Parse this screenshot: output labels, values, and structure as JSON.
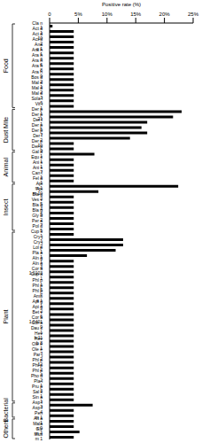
{
  "chart_data": {
    "type": "bar",
    "orientation": "horizontal",
    "xlabel": "Positive rate (%)",
    "color": "#000000",
    "xlim": [
      0,
      25
    ],
    "xticks": [
      0,
      {
        "value": 5,
        "label": "5%"
      },
      {
        "value": 10,
        "label": "10%"
      },
      {
        "value": 15,
        "label": "15%"
      },
      {
        "value": 20,
        "label": "20%"
      },
      {
        "value": 25,
        "label": "25%"
      }
    ],
    "grid": false,
    "categories": [
      "Cla n 1",
      "Act d 1",
      "Act d 10",
      "Act d 2",
      "Ana o 1",
      "Ara h 1",
      "Ara h 3",
      "Ara h 6",
      "Ara h 8",
      "Ara h 9",
      "Bos d 2",
      "Mal d 1",
      "Mal d 2",
      "Mal d 3",
      "Sola l 6",
      "Vit i 1",
      "Der p 1",
      "Der p 21",
      "Der f 1",
      "Der p 5",
      "Der p 7",
      "Der f 2",
      "Der p 10",
      "Der p 9",
      "Gal d 1",
      "Equ c 1",
      "Ani s 1",
      "Ani s 7",
      "Can f 1",
      "Fel d 1",
      "Api m 1",
      "Api m 10",
      "Bla g 2",
      "Ves v 5",
      "Bla g 4",
      "Bla g 5",
      "Gly d 2",
      "Per a 7",
      "Pol d 5",
      "Cup s 1",
      "Cry j 1",
      "Cry j 2",
      "Lol p 1",
      "Pla a 1",
      "Aln g 1",
      "Aln g 4",
      "Cor a 1.0103",
      "Cup a 1",
      "Phl p 1",
      "Phl p 5",
      "Phl p 7",
      "Amb a 1",
      "Api g 1",
      "Api g 2",
      "Bet v 6",
      "Cor a 1.0401",
      "Cor a 9",
      "Dau c 1",
      "Hev b 11",
      "Hev b 8",
      "Ole e 1",
      "Ole e 7",
      "Par j 2",
      "Phl p 12",
      "Phl p 2",
      "Phl p 4",
      "Pho d 2",
      "Pla l 1",
      "Pru p 3",
      "Sal k 1",
      "Sin a 1",
      "Asp f 3",
      "Asp f 4",
      "Pen m 1",
      "Alt a 1",
      "Mala s 9",
      "Gly m 4",
      "Mus m 1"
    ],
    "values": [
      0.5,
      4.2,
      4.2,
      4.2,
      4.2,
      4.2,
      4.2,
      4.2,
      4.2,
      4.2,
      4.2,
      4.2,
      4.2,
      4.2,
      4.2,
      4.2,
      23,
      21.5,
      17,
      16,
      17,
      14,
      4.2,
      4.2,
      7.8,
      4.2,
      4.2,
      4.2,
      4.2,
      4.2,
      22.4,
      8.5,
      4.2,
      4.2,
      4.2,
      4.2,
      4.2,
      4.2,
      4.2,
      4.2,
      12.8,
      12.8,
      11.5,
      6.5,
      4.2,
      4.2,
      4.2,
      4.2,
      4.2,
      4.2,
      4.2,
      4.2,
      4.2,
      4.2,
      4.2,
      4.2,
      4.2,
      4.2,
      4.2,
      4.2,
      4.2,
      4.2,
      4.2,
      4.2,
      4.2,
      4.2,
      4.2,
      4.2,
      4.2,
      4.2,
      4.2,
      7.5,
      4.2,
      4.2,
      4.2,
      4.2,
      5.2,
      4.2
    ],
    "groups": [
      "Food",
      "Food",
      "Food",
      "Food",
      "Food",
      "Food",
      "Food",
      "Food",
      "Food",
      "Food",
      "Food",
      "Food",
      "Food",
      "Food",
      "Food",
      "Food",
      "Dust Mite",
      "Dust Mite",
      "Dust Mite",
      "Dust Mite",
      "Dust Mite",
      "Dust Mite",
      "Dust Mite",
      "Dust Mite",
      "Animal",
      "Animal",
      "Animal",
      "Animal",
      "Animal",
      "Animal",
      "Insect",
      "Insect",
      "Insect",
      "Insect",
      "Insect",
      "Insect",
      "Insect",
      "Insect",
      "Insect",
      "Plant",
      "Plant",
      "Plant",
      "Plant",
      "Plant",
      "Plant",
      "Plant",
      "Plant",
      "Plant",
      "Plant",
      "Plant",
      "Plant",
      "Plant",
      "Plant",
      "Plant",
      "Plant",
      "Plant",
      "Plant",
      "Plant",
      "Plant",
      "Plant",
      "Plant",
      "Plant",
      "Plant",
      "Plant",
      "Plant",
      "Plant",
      "Plant",
      "Plant",
      "Plant",
      "Plant",
      "Plant",
      "Bacterial",
      "Bacterial",
      "Bacterial",
      "Others",
      "Others",
      "Others",
      "Others"
    ]
  }
}
